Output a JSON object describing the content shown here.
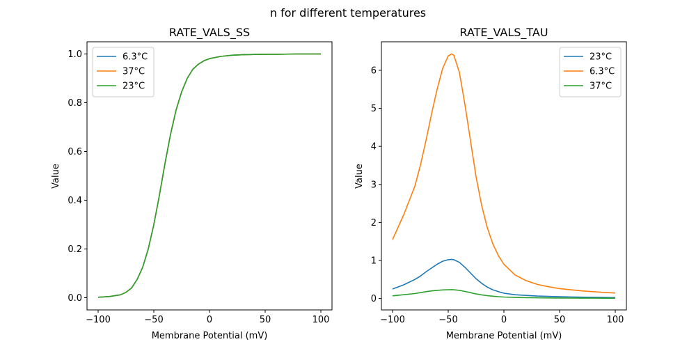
{
  "figure": {
    "suptitle": "n for different temperatures"
  },
  "chart_data": [
    {
      "type": "line",
      "title": "RATE_VALS_SS",
      "xlabel": "Membrane Potential (mV)",
      "ylabel": "Value",
      "xlim": [
        -110,
        110
      ],
      "ylim": [
        -0.05,
        1.05
      ],
      "xticks": [
        -100,
        -50,
        0,
        50,
        100
      ],
      "xtick_labels": [
        "−100",
        "−50",
        "0",
        "50",
        "100"
      ],
      "yticks": [
        0.0,
        0.2,
        0.4,
        0.6,
        0.8,
        1.0
      ],
      "ytick_labels": [
        "0.0",
        "0.2",
        "0.4",
        "0.6",
        "0.8",
        "1.0"
      ],
      "grid": false,
      "legend_position": "upper left",
      "x": [
        -100,
        -90,
        -80,
        -75,
        -70,
        -65,
        -60,
        -55,
        -50,
        -45,
        -40,
        -35,
        -30,
        -25,
        -20,
        -15,
        -10,
        -5,
        0,
        10,
        20,
        30,
        40,
        50,
        60,
        80,
        100
      ],
      "series": [
        {
          "name": "6.3°C",
          "color": "#1f77b4",
          "values": [
            0.002,
            0.005,
            0.012,
            0.022,
            0.04,
            0.075,
            0.125,
            0.2,
            0.3,
            0.42,
            0.55,
            0.67,
            0.77,
            0.845,
            0.9,
            0.937,
            0.958,
            0.972,
            0.981,
            0.99,
            0.995,
            0.997,
            0.998,
            0.999,
            0.999,
            1.0,
            1.0
          ]
        },
        {
          "name": "37°C",
          "color": "#ff7f0e",
          "values": [
            0.002,
            0.005,
            0.012,
            0.022,
            0.04,
            0.075,
            0.125,
            0.2,
            0.3,
            0.42,
            0.55,
            0.67,
            0.77,
            0.845,
            0.9,
            0.937,
            0.958,
            0.972,
            0.981,
            0.99,
            0.995,
            0.997,
            0.998,
            0.999,
            0.999,
            1.0,
            1.0
          ]
        },
        {
          "name": "23°C",
          "color": "#2ca02c",
          "values": [
            0.002,
            0.005,
            0.012,
            0.022,
            0.04,
            0.075,
            0.125,
            0.2,
            0.3,
            0.42,
            0.55,
            0.67,
            0.77,
            0.845,
            0.9,
            0.937,
            0.958,
            0.972,
            0.981,
            0.99,
            0.995,
            0.997,
            0.998,
            0.999,
            0.999,
            1.0,
            1.0
          ]
        }
      ]
    },
    {
      "type": "line",
      "title": "RATE_VALS_TAU",
      "xlabel": "Membrane Potential (mV)",
      "ylabel": "Value",
      "xlim": [
        -110,
        110
      ],
      "ylim": [
        -0.3,
        6.75
      ],
      "xticks": [
        -100,
        -50,
        0,
        50,
        100
      ],
      "xtick_labels": [
        "−100",
        "−50",
        "0",
        "50",
        "100"
      ],
      "yticks": [
        0,
        1,
        2,
        3,
        4,
        5,
        6
      ],
      "ytick_labels": [
        "0",
        "1",
        "2",
        "3",
        "4",
        "5",
        "6"
      ],
      "grid": false,
      "legend_position": "upper right",
      "x": [
        -100,
        -90,
        -80,
        -75,
        -70,
        -65,
        -60,
        -55,
        -50,
        -47,
        -45,
        -40,
        -35,
        -30,
        -25,
        -20,
        -15,
        -10,
        -5,
        0,
        10,
        20,
        30,
        40,
        50,
        60,
        70,
        80,
        90,
        100
      ],
      "series": [
        {
          "name": "23°C",
          "color": "#1f77b4",
          "values": [
            0.25,
            0.36,
            0.5,
            0.59,
            0.7,
            0.8,
            0.9,
            0.98,
            1.02,
            1.03,
            1.02,
            0.95,
            0.82,
            0.67,
            0.52,
            0.4,
            0.3,
            0.23,
            0.18,
            0.14,
            0.1,
            0.08,
            0.065,
            0.055,
            0.047,
            0.04,
            0.035,
            0.031,
            0.028,
            0.025
          ]
        },
        {
          "name": "6.3°C",
          "color": "#ff7f0e",
          "values": [
            1.55,
            2.2,
            2.95,
            3.5,
            4.15,
            4.85,
            5.5,
            6.05,
            6.38,
            6.43,
            6.4,
            5.95,
            5.1,
            4.15,
            3.2,
            2.45,
            1.87,
            1.44,
            1.13,
            0.9,
            0.62,
            0.47,
            0.37,
            0.31,
            0.26,
            0.23,
            0.2,
            0.18,
            0.16,
            0.145
          ]
        },
        {
          "name": "37°C",
          "color": "#2ca02c",
          "values": [
            0.07,
            0.1,
            0.13,
            0.155,
            0.18,
            0.2,
            0.215,
            0.225,
            0.23,
            0.232,
            0.23,
            0.215,
            0.185,
            0.155,
            0.12,
            0.095,
            0.075,
            0.06,
            0.048,
            0.038,
            0.028,
            0.022,
            0.018,
            0.015,
            0.013,
            0.011,
            0.01,
            0.009,
            0.008,
            0.008
          ]
        }
      ]
    }
  ]
}
